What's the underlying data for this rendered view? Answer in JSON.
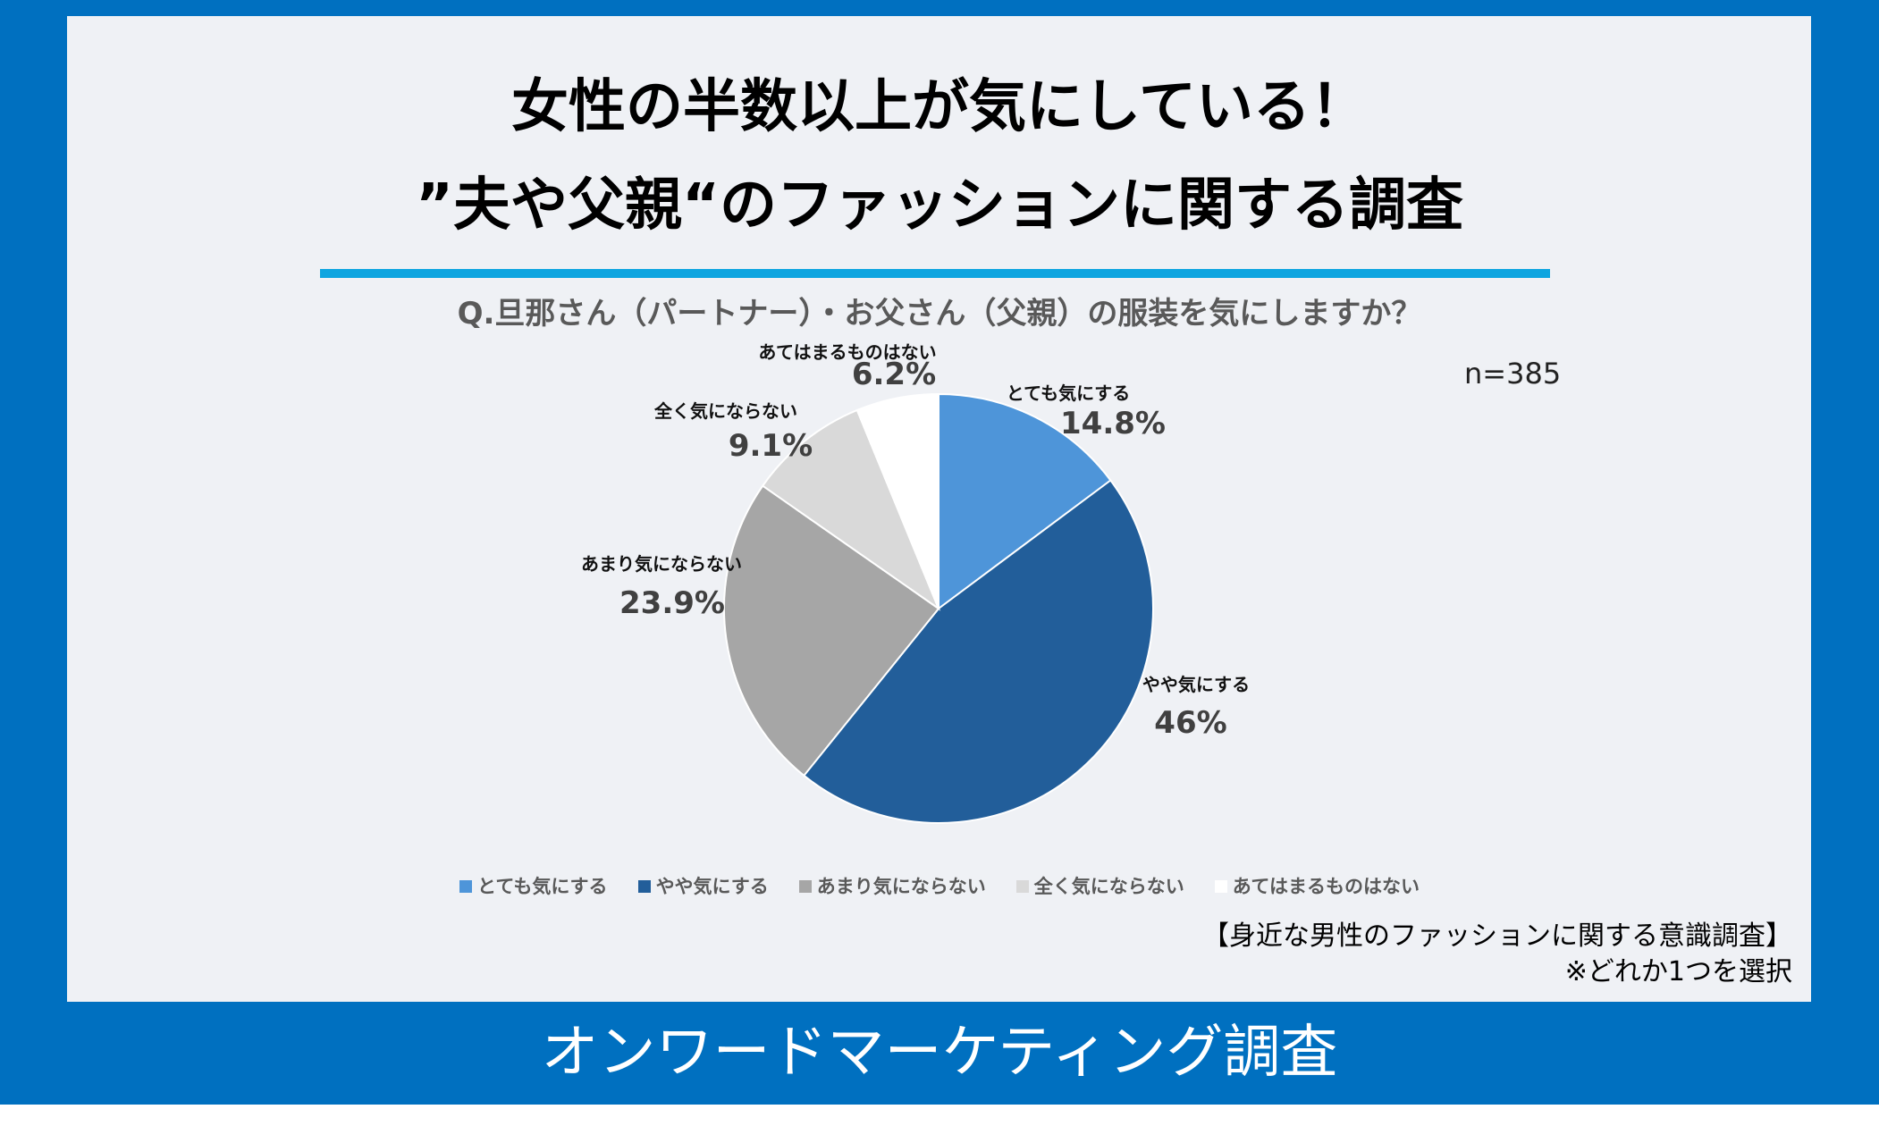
{
  "header": {
    "title_line1": "女性の半数以上が気にしている！",
    "title_line2": "”夫や父親“のファッションに関する調査"
  },
  "chart_data": {
    "type": "pie",
    "title": "Q.旦那さん（パートナー）・お父さん（父親）の服装を気にしますか？",
    "sample_note": "n=385",
    "categories": [
      "とても気にする",
      "やや気にする",
      "あまり気にならない",
      "全く気にならない",
      "あてはまるものはない"
    ],
    "values": [
      14.8,
      46,
      23.9,
      9.1,
      6.2
    ],
    "value_labels": [
      "14.8%",
      "46%",
      "23.9%",
      "9.1%",
      "6.2%"
    ],
    "colors": [
      "#4e95d9",
      "#225e9a",
      "#a6a6a6",
      "#d9d9d9",
      "#ffffff"
    ],
    "start_angle": "12 o'clock, clockwise",
    "legend_position": "bottom"
  },
  "source": {
    "line1": "【身近な男性のファッションに関する意識調査】",
    "line2": "※どれか1つを選択"
  },
  "footer": {
    "label": "オンワードマーケティング調査"
  }
}
